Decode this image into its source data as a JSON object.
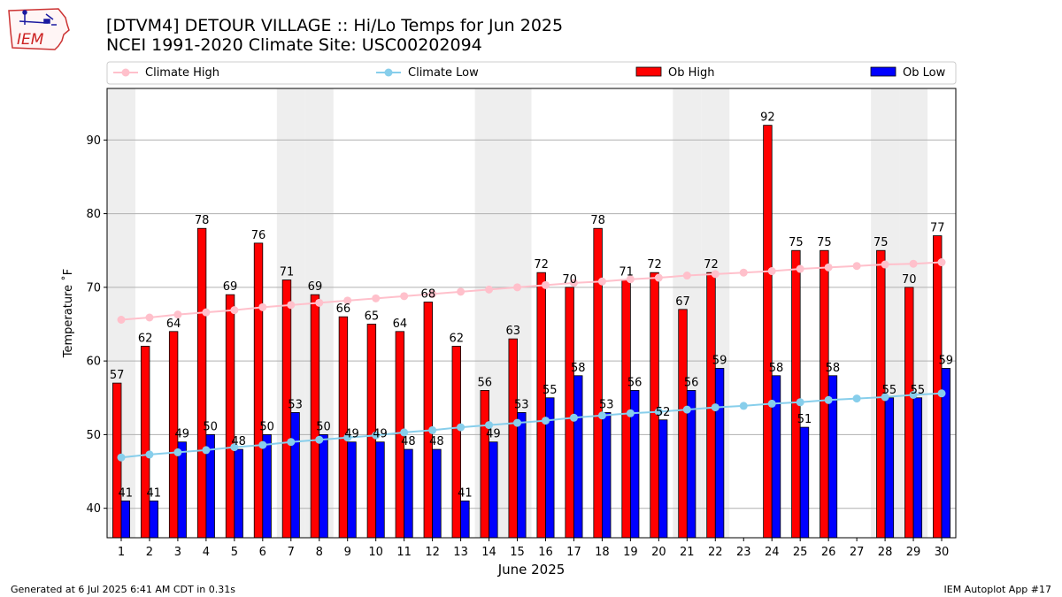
{
  "header": {
    "title_line1": "[DTVM4] DETOUR VILLAGE :: Hi/Lo Temps for Jun 2025",
    "title_line2": "NCEI 1991-2020 Climate Site: USC00202094"
  },
  "logo": {
    "text": "IEM",
    "icon": "iem-iowa-logo"
  },
  "footer": {
    "generated": "Generated at 6 Jul 2025 6:41 AM CDT in 0.31s",
    "app": "IEM Autoplot App #17"
  },
  "colors": {
    "ob_high": "#ff0000",
    "ob_low": "#0000ff",
    "climate_high": "#ffc0cb",
    "climate_low": "#87ceeb",
    "weekend_band": "#eeeeee",
    "grid": "#b0b0b0"
  },
  "chart_data": {
    "type": "bar",
    "xlabel": "June 2025",
    "ylabel": "Temperature ˚F",
    "ylim": [
      36,
      97
    ],
    "yticks": [
      40,
      50,
      60,
      70,
      80,
      90
    ],
    "grid": "horizontal",
    "legend_placement": "top",
    "categories": [
      "1",
      "2",
      "3",
      "4",
      "5",
      "6",
      "7",
      "8",
      "9",
      "10",
      "11",
      "12",
      "13",
      "14",
      "15",
      "16",
      "17",
      "18",
      "19",
      "20",
      "21",
      "22",
      "23",
      "24",
      "25",
      "26",
      "27",
      "28",
      "29",
      "30"
    ],
    "weekend_days": [
      1,
      7,
      8,
      14,
      15,
      21,
      22,
      28,
      29
    ],
    "series": [
      {
        "name": "Climate High",
        "kind": "line",
        "values": [
          65.6,
          65.9,
          66.3,
          66.6,
          66.9,
          67.3,
          67.6,
          67.9,
          68.2,
          68.5,
          68.8,
          69.1,
          69.4,
          69.7,
          70.0,
          70.3,
          70.6,
          70.8,
          71.1,
          71.3,
          71.6,
          71.8,
          72.0,
          72.2,
          72.5,
          72.7,
          72.9,
          73.1,
          73.2,
          73.4
        ]
      },
      {
        "name": "Climate Low",
        "kind": "line",
        "values": [
          46.9,
          47.3,
          47.6,
          47.9,
          48.3,
          48.6,
          49.0,
          49.3,
          49.6,
          49.9,
          50.3,
          50.6,
          51.0,
          51.3,
          51.6,
          51.9,
          52.3,
          52.6,
          52.9,
          53.1,
          53.4,
          53.7,
          53.9,
          54.2,
          54.4,
          54.7,
          54.9,
          55.1,
          55.4,
          55.6
        ]
      },
      {
        "name": "Ob High",
        "kind": "bar",
        "values": [
          57,
          62,
          64,
          78,
          69,
          76,
          71,
          69,
          66,
          65,
          64,
          68,
          62,
          56,
          63,
          72,
          70,
          78,
          71,
          72,
          67,
          72,
          null,
          92,
          75,
          75,
          null,
          75,
          70,
          77
        ]
      },
      {
        "name": "Ob Low",
        "kind": "bar",
        "values": [
          41,
          41,
          49,
          50,
          48,
          50,
          53,
          50,
          49,
          49,
          48,
          48,
          41,
          49,
          53,
          55,
          58,
          53,
          56,
          52,
          56,
          59,
          null,
          58,
          51,
          58,
          null,
          55,
          55,
          59
        ]
      }
    ]
  }
}
